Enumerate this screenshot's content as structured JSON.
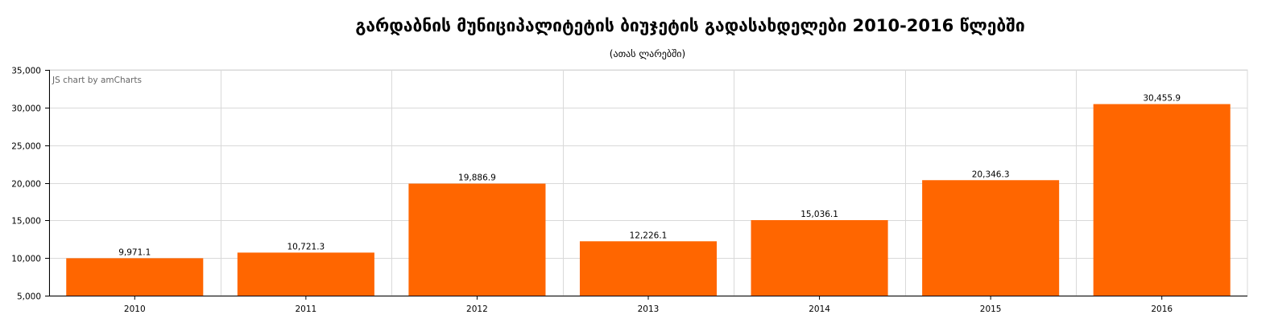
{
  "chart_data": {
    "type": "bar",
    "title": "გარდაბნის მუნიციპალიტეტის ბიუჯეტის გადასახდელები 2010-2016 წლებში",
    "subtitle": "(ათას ლარებში)",
    "categories": [
      "2010",
      "2011",
      "2012",
      "2013",
      "2014",
      "2015",
      "2016"
    ],
    "values": [
      9971.1,
      10721.3,
      19886.9,
      12226.1,
      15036.1,
      20346.3,
      30455.9
    ],
    "value_labels": [
      "9,971.1",
      "10,721.3",
      "19,886.9",
      "12,226.1",
      "15,036.1",
      "20,346.3",
      "30,455.9"
    ],
    "ylim": [
      5000,
      35000
    ],
    "yticks": [
      5000,
      10000,
      15000,
      20000,
      25000,
      30000,
      35000
    ],
    "ytick_labels": [
      "5,000",
      "10,000",
      "15,000",
      "20,000",
      "25,000",
      "30,000",
      "35,000"
    ],
    "xlabel": "",
    "ylabel": "",
    "grid": true,
    "bar_color": "#ff6600",
    "credit": "JS chart by amCharts"
  }
}
